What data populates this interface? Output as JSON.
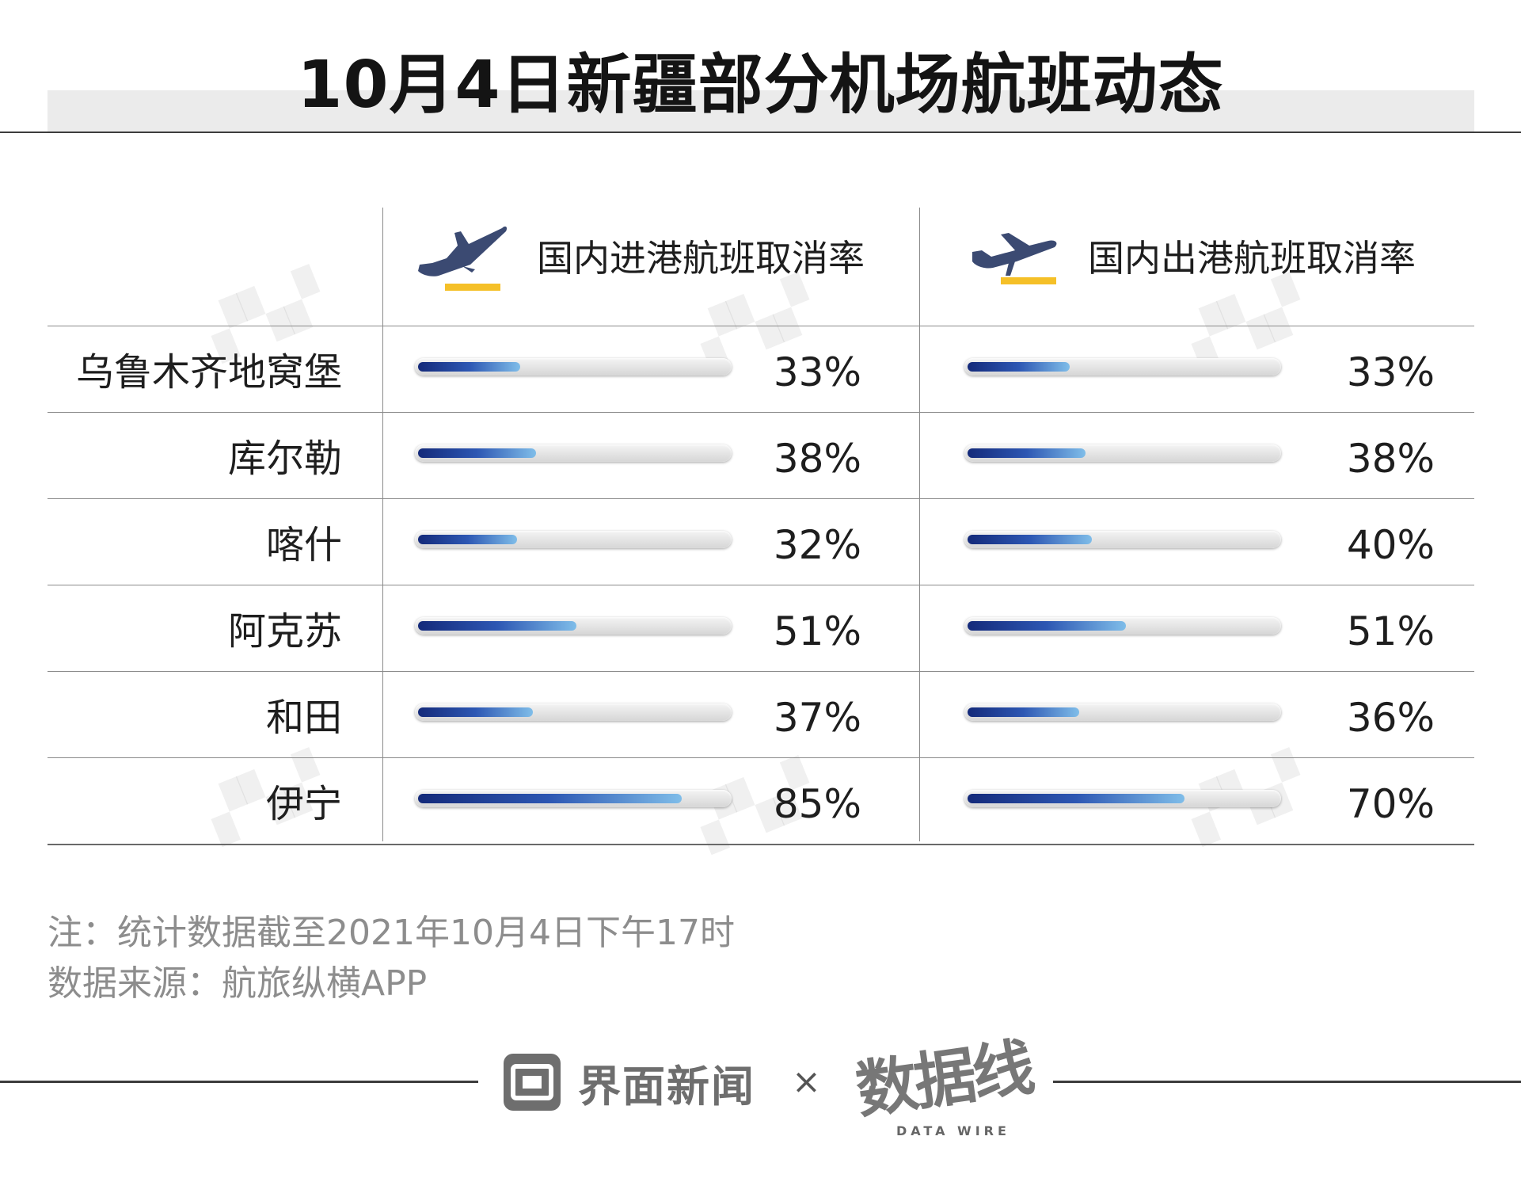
{
  "title": "10月4日新疆部分机场航班动态",
  "columns": [
    {
      "label": "国内进港航班取消率",
      "icon": "plane-landing-icon"
    },
    {
      "label": "国内出港航班取消率",
      "icon": "plane-departure-icon"
    }
  ],
  "rows": [
    {
      "city": "乌鲁木齐地窝堡",
      "arr": "33%",
      "dep": "33%"
    },
    {
      "city": "库尔勒",
      "arr": "38%",
      "dep": "38%"
    },
    {
      "city": "喀什",
      "arr": "32%",
      "dep": "40%"
    },
    {
      "city": "阿克苏",
      "arr": "51%",
      "dep": "51%"
    },
    {
      "city": "和田",
      "arr": "37%",
      "dep": "36%"
    },
    {
      "city": "伊宁",
      "arr": "85%",
      "dep": "70%"
    }
  ],
  "notes": {
    "note": "注：统计数据截至2021年10月4日下午17时",
    "source": "数据来源：航旅纵横APP"
  },
  "footer": {
    "brand_left": "界面新闻",
    "times": "×",
    "brand_right": "数据线",
    "brand_right_sub": "DATA WIRE"
  },
  "colors": {
    "icon_navy": "#3b4a72",
    "icon_accent": "#f5c028",
    "bar_start": "#142a7a",
    "bar_end": "#7fbde9"
  },
  "chart_data": {
    "type": "bar",
    "categories": [
      "乌鲁木齐地窝堡",
      "库尔勒",
      "喀什",
      "阿克苏",
      "和田",
      "伊宁"
    ],
    "series": [
      {
        "name": "国内进港航班取消率",
        "values": [
          33,
          38,
          32,
          51,
          37,
          85
        ]
      },
      {
        "name": "国内出港航班取消率",
        "values": [
          33,
          38,
          40,
          51,
          36,
          70
        ]
      }
    ],
    "unit": "%",
    "ylim": [
      0,
      100
    ],
    "orientation": "horizontal"
  }
}
